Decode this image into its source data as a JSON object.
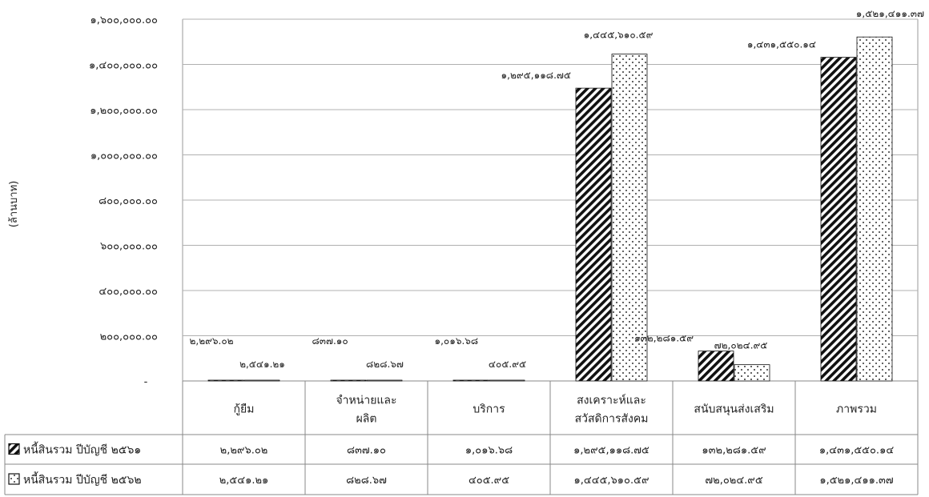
{
  "chart_data": {
    "type": "bar",
    "ylabel": "(ล้านบาท)",
    "ylim": [
      0,
      1600000
    ],
    "grid": true,
    "ticks": [
      {
        "value": 0,
        "label": "-"
      },
      {
        "value": 200000,
        "label": "๒๐๐,๐๐๐.๐๐"
      },
      {
        "value": 400000,
        "label": "๔๐๐,๐๐๐.๐๐"
      },
      {
        "value": 600000,
        "label": "๖๐๐,๐๐๐.๐๐"
      },
      {
        "value": 800000,
        "label": "๘๐๐,๐๐๐.๐๐"
      },
      {
        "value": 1000000,
        "label": "๑,๐๐๐,๐๐๐.๐๐"
      },
      {
        "value": 1200000,
        "label": "๑,๒๐๐,๐๐๐.๐๐"
      },
      {
        "value": 1400000,
        "label": "๑,๔๐๐,๐๐๐.๐๐"
      },
      {
        "value": 1600000,
        "label": "๑,๖๐๐,๐๐๐.๐๐"
      }
    ],
    "categories": [
      [
        "กู้ยืม"
      ],
      [
        "จำหน่ายและ",
        "ผลิต"
      ],
      [
        "บริการ"
      ],
      [
        "สงเคราะห์และ",
        "สวัสดิการสังคม"
      ],
      [
        "สนับสนุนส่งเสริม"
      ],
      [
        "ภาพรวม"
      ]
    ],
    "series": [
      {
        "name": "หนี้สินรวม ปีบัญชี ๒๕๖๑",
        "pattern": "diagonal",
        "values": [
          2296.02,
          837.1,
          1016.68,
          1295118.75,
          132281.59,
          1431550.14
        ],
        "labels": [
          "๒,๒๙๖.๐๒",
          "๘๓๗.๑๐",
          "๑,๐๑๖.๖๘",
          "๑,๒๙๕,๑๑๘.๗๕",
          "๑๓๒,๒๘๑.๕๙",
          "๑,๔๓๑,๕๕๐.๑๔"
        ]
      },
      {
        "name": "หนี้สินรวม ปีบัญชี ๒๕๖๒",
        "pattern": "dotted",
        "values": [
          2541.21,
          828.67,
          405.95,
          1445610.59,
          72024.95,
          1521411.37
        ],
        "labels": [
          "๒,๕๔๑.๒๑",
          "๘๒๘.๖๗",
          "๔๐๕.๙๕",
          "๑,๔๔๕,๖๑๐.๕๙",
          "๗๒,๐๒๔.๙๕",
          "๑,๕๒๑,๔๑๑.๓๗"
        ]
      }
    ]
  }
}
